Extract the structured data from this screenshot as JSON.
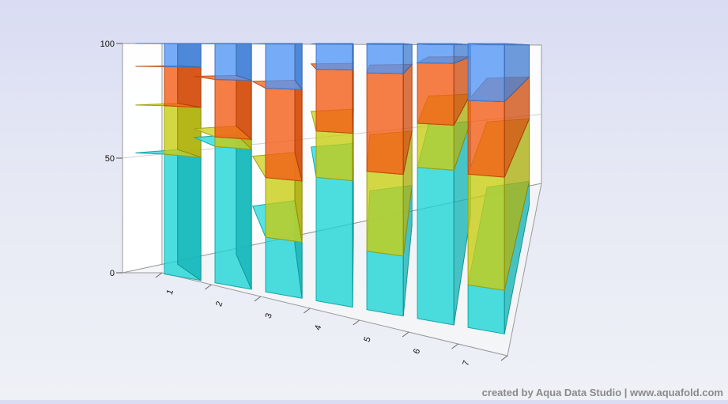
{
  "chart_data": {
    "type": "bar",
    "stacked": true,
    "normalized": true,
    "projection": "3d",
    "categories": [
      "1",
      "2",
      "3",
      "4",
      "5",
      "6",
      "7"
    ],
    "ylim": [
      0,
      100
    ],
    "yticks": [
      "0",
      "50",
      "100"
    ],
    "grid": false,
    "legend": "none",
    "series": [
      {
        "color": "#1ad3d6",
        "values": [
          52,
          57,
          22,
          48,
          22,
          55,
          15
        ]
      },
      {
        "color": "#c8cc10",
        "values": [
          21,
          4,
          24,
          18,
          30,
          16,
          39
        ]
      },
      {
        "color": "#f25a12",
        "values": [
          17,
          24,
          36,
          24,
          37,
          22,
          26
        ]
      },
      {
        "color": "#4f93f5",
        "values": [
          10,
          15,
          18,
          10,
          11,
          7,
          20
        ]
      }
    ]
  },
  "watermark": "created by Aqua Data Studio | www.aquafold.com"
}
